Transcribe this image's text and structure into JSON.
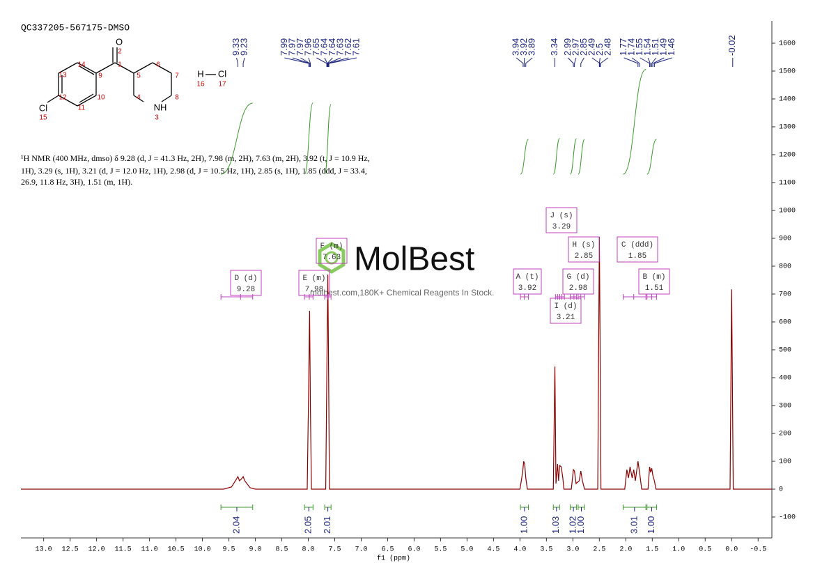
{
  "chart_data": {
    "type": "line",
    "title": "QC337205-567175-DMSO",
    "description": [
      "¹H NMR (400 MHz, dmso) δ 9.28 (d, J = 41.3 Hz, 2H), 7.98 (m, 2H), 7.63 (m, 2H), 3.92 (t, J = 10.9 Hz,",
      "1H), 3.29 (s, 1H), 3.21 (d, J = 12.0 Hz, 1H), 2.98 (d, J = 10.5 Hz, 1H), 2.85 (s, 1H), 1.85 (ddd, J = 33.4,",
      "26.9, 11.8 Hz, 3H), 1.51 (m, 1H)."
    ],
    "watermark": "MolBest",
    "watermark_text": "molbest.com,180K+ Chemical Reagents In Stock.",
    "xlabel": "f1 (ppm)",
    "color": "#8b0000",
    "x": [
      13.43,
      9.6,
      9.45,
      9.36,
      9.33,
      9.3,
      9.27,
      9.23,
      9.2,
      9.1,
      9.0,
      8.02,
      7.99,
      7.975,
      7.96,
      7.94,
      7.67,
      7.645,
      7.63,
      7.615,
      7.6,
      4.0,
      3.95,
      3.93,
      3.91,
      3.89,
      3.86,
      3.37,
      3.34,
      3.32,
      3.29,
      3.27,
      3.25,
      3.22,
      3.19,
      3.17,
      3.03,
      2.99,
      2.97,
      2.94,
      2.88,
      2.85,
      2.82,
      2.78,
      2.53,
      2.5,
      2.49,
      2.47,
      2.02,
      1.98,
      1.95,
      1.92,
      1.88,
      1.85,
      1.82,
      1.77,
      1.74,
      1.7,
      1.58,
      1.55,
      1.53,
      1.51,
      1.49,
      1.46,
      1.43,
      0.03,
      0.0,
      -0.03,
      -0.76
    ],
    "values": [
      0,
      0,
      8,
      35,
      45,
      30,
      35,
      45,
      30,
      5,
      0,
      0,
      400,
      640,
      300,
      0,
      0,
      500,
      770,
      400,
      0,
      0,
      60,
      100,
      90,
      40,
      0,
      0,
      440,
      20,
      90,
      30,
      85,
      80,
      40,
      0,
      0,
      70,
      65,
      20,
      30,
      65,
      30,
      0,
      0,
      905,
      650,
      0,
      0,
      70,
      40,
      80,
      40,
      70,
      30,
      100,
      60,
      0,
      0,
      80,
      60,
      75,
      50,
      30,
      0,
      0,
      717,
      0,
      0
    ],
    "xlim": [
      13.43,
      -0.76
    ],
    "ylim": [
      -175,
      1680
    ],
    "xticks": [
      {
        "value": 13,
        "label": "13.0"
      },
      {
        "value": 12.5,
        "label": "12.5"
      },
      {
        "value": 12,
        "label": "12.0"
      },
      {
        "value": 11.5,
        "label": "11.5"
      },
      {
        "value": 11,
        "label": "11.0"
      },
      {
        "value": 10.5,
        "label": "10.5"
      },
      {
        "value": 10,
        "label": "10.0"
      },
      {
        "value": 9.5,
        "label": "9.5"
      },
      {
        "value": 9,
        "label": "9.0"
      },
      {
        "value": 8.5,
        "label": "8.5"
      },
      {
        "value": 8,
        "label": "8.0"
      },
      {
        "value": 7.5,
        "label": "7.5"
      },
      {
        "value": 7,
        "label": "7.0"
      },
      {
        "value": 6.5,
        "label": "6.5"
      },
      {
        "value": 6,
        "label": "6.0"
      },
      {
        "value": 5.5,
        "label": "5.5"
      },
      {
        "value": 5,
        "label": "5.0"
      },
      {
        "value": 4.5,
        "label": "4.5"
      },
      {
        "value": 4,
        "label": "4.0"
      },
      {
        "value": 3.5,
        "label": "3.5"
      },
      {
        "value": 3,
        "label": "3.0"
      },
      {
        "value": 2.5,
        "label": "2.5"
      },
      {
        "value": 2,
        "label": "2.0"
      },
      {
        "value": 1.5,
        "label": "1.5"
      },
      {
        "value": 1,
        "label": "1.0"
      },
      {
        "value": 0.5,
        "label": "0.5"
      },
      {
        "value": 0,
        "label": "0.0"
      },
      {
        "value": -0.5,
        "label": "-0.5"
      }
    ],
    "yticks": [
      -100,
      0,
      100,
      200,
      300,
      400,
      500,
      600,
      700,
      800,
      900,
      1000,
      1100,
      1200,
      1300,
      1400,
      1500,
      1600
    ],
    "peak_picks": [
      9.33,
      9.23,
      7.99,
      7.97,
      7.97,
      7.96,
      7.65,
      7.64,
      7.64,
      7.63,
      7.62,
      7.61,
      3.94,
      3.92,
      3.89,
      3.34,
      2.99,
      2.97,
      2.85,
      2.49,
      2.5,
      2.48,
      1.77,
      1.74,
      1.55,
      1.54,
      1.51,
      1.49,
      1.46,
      -0.02
    ],
    "integrals": {
      "ranges": [
        [
          9.65,
          9.05
        ],
        [
          8.07,
          7.91
        ],
        [
          7.69,
          7.57
        ],
        [
          3.99,
          3.84
        ],
        [
          3.37,
          3.25
        ],
        [
          3.05,
          2.93
        ],
        [
          2.9,
          2.78
        ],
        [
          2.05,
          1.62
        ],
        [
          1.6,
          1.42
        ]
      ],
      "values": [
        2.04,
        2.05,
        2.01,
        1.0,
        1.03,
        1.02,
        1.0,
        3.01,
        1.0
      ],
      "value_labels": [
        "2.04",
        "2.05",
        "2.01",
        "1.00",
        "1.03",
        "1.02",
        "1.00",
        "3.01",
        "1.00"
      ]
    },
    "multiplets": [
      {
        "label": "D (d)",
        "shift": 9.28,
        "range": [
          9.65,
          9.05
        ]
      },
      {
        "label": "E (m)",
        "shift": 7.98,
        "range": [
          8.07,
          7.91
        ]
      },
      {
        "label": "F (m)",
        "shift": 7.63,
        "range": [
          7.69,
          7.57
        ]
      },
      {
        "label": "A (t)",
        "shift": 3.92,
        "range": [
          3.99,
          3.84
        ]
      },
      {
        "label": "J (s)",
        "shift": 3.29,
        "range": [
          3.33,
          3.25
        ]
      },
      {
        "label": "I (d)",
        "shift": 3.21,
        "range": [
          3.25,
          3.16
        ]
      },
      {
        "label": "G (d)",
        "shift": 2.98,
        "range": [
          3.05,
          2.93
        ]
      },
      {
        "label": "H (s)",
        "shift": 2.85,
        "range": [
          2.9,
          2.78
        ]
      },
      {
        "label": "C (ddd)",
        "shift": 1.85,
        "range": [
          2.05,
          1.62
        ]
      },
      {
        "label": "B (m)",
        "shift": 1.51,
        "range": [
          1.6,
          1.42
        ]
      }
    ]
  },
  "molecule": {
    "labels": [
      "O",
      "2",
      "1",
      "14",
      "9",
      "13",
      "12",
      "10",
      "11",
      "Cl",
      "15",
      "5",
      "6",
      "7",
      "4",
      "8",
      "NH",
      "3",
      "H",
      "Cl",
      "16",
      "17"
    ]
  }
}
